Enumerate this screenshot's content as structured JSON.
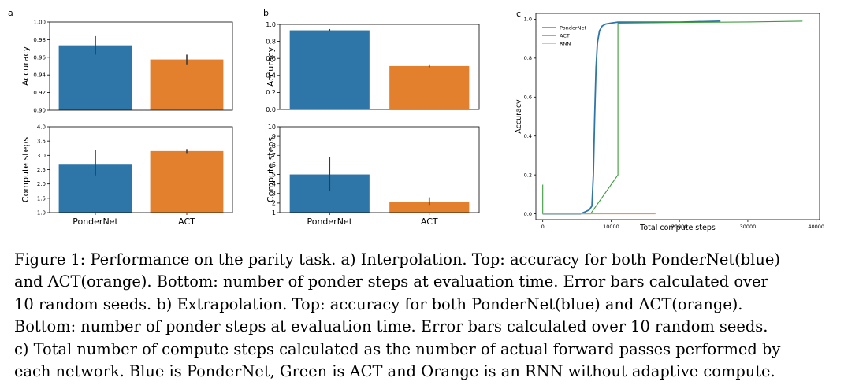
{
  "panels": [
    {
      "letter": "a",
      "accuracy_chart": {
        "type": "bar",
        "categories": [
          "PonderNet",
          "ACT"
        ],
        "values": [
          0.9735,
          0.9575
        ],
        "errors": [
          [
            0.963,
            0.984
          ],
          [
            0.952,
            0.963
          ]
        ],
        "ylabel": "Accuracy",
        "ylim": [
          0.9,
          1.0
        ],
        "yticks": [
          "0.90",
          "0.92",
          "0.94",
          "0.96",
          "0.98",
          "1.00"
        ],
        "colors": [
          "#2e75a8",
          "#e2802e"
        ],
        "grid": false
      },
      "compute_chart": {
        "type": "bar",
        "categories": [
          "PonderNet",
          "ACT"
        ],
        "values": [
          2.7,
          3.15
        ],
        "errors": [
          [
            2.3,
            3.18
          ],
          [
            3.08,
            3.22
          ]
        ],
        "ylabel": "Compute steps",
        "ylim": [
          1.0,
          4.0
        ],
        "yticks": [
          "1.0",
          "1.5",
          "2.0",
          "2.5",
          "3.0",
          "3.5",
          "4.0"
        ],
        "xticklabels": [
          "PonderNet",
          "ACT"
        ],
        "colors": [
          "#2e75a8",
          "#e2802e"
        ],
        "grid": false
      }
    },
    {
      "letter": "b",
      "accuracy_chart": {
        "type": "bar",
        "categories": [
          "PonderNet",
          "ACT"
        ],
        "values": [
          0.93,
          0.51
        ],
        "errors": [
          [
            0.92,
            0.945
          ],
          [
            0.495,
            0.53
          ]
        ],
        "ylabel": "Accuracy",
        "ylim": [
          0.0,
          1.0
        ],
        "yticks": [
          "0.0",
          "0.2",
          "0.4",
          "0.6",
          "0.8",
          "1.0"
        ],
        "colors": [
          "#2e75a8",
          "#e2802e"
        ],
        "grid": false
      },
      "compute_chart": {
        "type": "bar",
        "categories": [
          "PonderNet",
          "ACT"
        ],
        "values": [
          5.0,
          2.1
        ],
        "errors": [
          [
            3.3,
            6.8
          ],
          [
            1.8,
            2.6
          ]
        ],
        "ylabel": "Compute steps",
        "ylim": [
          1,
          10
        ],
        "yticks": [
          "1",
          "2",
          "3",
          "4",
          "5",
          "6",
          "7",
          "8",
          "9",
          "10"
        ],
        "xticklabels": [
          "PonderNet",
          "ACT"
        ],
        "colors": [
          "#2e75a8",
          "#e2802e"
        ],
        "grid": false
      }
    },
    {
      "letter": "c",
      "line_chart": {
        "type": "line",
        "xlabel": "Total compute steps",
        "ylabel": "Accuracy",
        "xlim": [
          -1000,
          40500
        ],
        "ylim": [
          -0.03,
          1.03
        ],
        "xticks": [
          "0",
          "10000",
          "20000",
          "30000",
          "40000"
        ],
        "yticks": [
          "0.0",
          "0.2",
          "0.4",
          "0.6",
          "0.8",
          "1.0"
        ],
        "legend_position": "top-left",
        "series": [
          {
            "name": "PonderNet",
            "color": "#2e75a8",
            "x": [
              0,
              5500,
              6200,
              6800,
              7200,
              7400,
              7600,
              7800,
              8000,
              8300,
              8700,
              9200,
              10000,
              11000,
              13000,
              16000,
              20000,
              26000
            ],
            "y": [
              0.0,
              0.0,
              0.01,
              0.02,
              0.04,
              0.2,
              0.5,
              0.75,
              0.88,
              0.94,
              0.965,
              0.975,
              0.98,
              0.985,
              0.985,
              0.985,
              0.985,
              0.99
            ]
          },
          {
            "name": "ACT",
            "color": "#3a9c3a",
            "x": [
              0,
              0,
              500,
              7000,
              11000,
              11000,
              20000,
              30000,
              38000
            ],
            "y": [
              0.15,
              0.0,
              0.0,
              0.0,
              0.2,
              0.98,
              0.983,
              0.986,
              0.99
            ]
          },
          {
            "name": "RNN",
            "color": "#e8956a",
            "x": [
              0,
              16500
            ],
            "y": [
              0.0,
              0.0
            ]
          }
        ]
      }
    }
  ],
  "caption": {
    "lines": [
      "Figure 1: Performance on the parity task. a) Interpolation. Top: accuracy for both PonderNet(blue)",
      "and ACT(orange). Bottom: number of ponder steps at evaluation time. Error bars calculated over",
      "10 random seeds. b) Extrapolation. Top: accuracy for both PonderNet(blue) and ACT(orange).",
      "Bottom: number of ponder steps at evaluation time. Error bars calculated over 10 random seeds.",
      "c) Total number of compute steps calculated as the number of actual forward passes performed by",
      "each network. Blue is PonderNet, Green is ACT and Orange is an RNN without adaptive compute."
    ]
  }
}
